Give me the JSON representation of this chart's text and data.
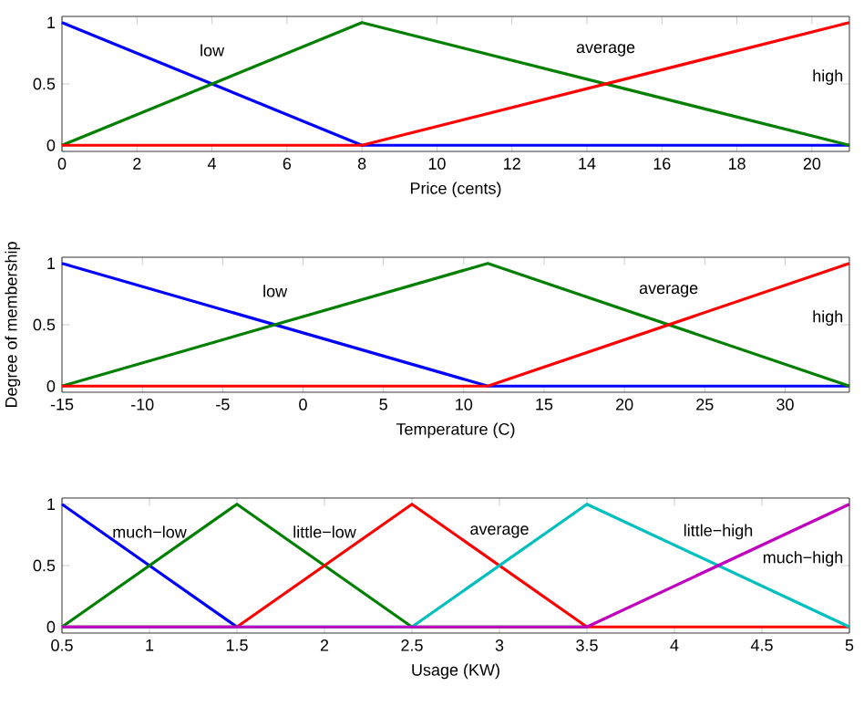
{
  "chart_data": [
    {
      "type": "line",
      "xlabel": "Price (cents)",
      "x": [
        0,
        8,
        21
      ],
      "xlim": [
        0,
        21
      ],
      "xticks": [
        0,
        2,
        4,
        6,
        8,
        10,
        12,
        14,
        16,
        18,
        20
      ],
      "ylim": [
        -0.05,
        1.05
      ],
      "yticks": [
        0,
        0.5,
        1
      ],
      "legend": false,
      "series": [
        {
          "name": "low",
          "color": "#0000ff",
          "values": [
            1,
            0,
            0
          ]
        },
        {
          "name": "average",
          "color": "#007f00",
          "values": [
            0,
            1,
            0
          ]
        },
        {
          "name": "high",
          "color": "#ff0000",
          "values": [
            0,
            0,
            1
          ]
        }
      ]
    },
    {
      "type": "line",
      "xlabel": "Temperature (C)",
      "ylabel": "Degree of membership",
      "x": [
        -15,
        11.5,
        34
      ],
      "xlim": [
        -15,
        34
      ],
      "xticks": [
        -15,
        -10,
        -5,
        0,
        5,
        10,
        15,
        20,
        25,
        30
      ],
      "ylim": [
        -0.05,
        1.05
      ],
      "yticks": [
        0,
        0.5,
        1
      ],
      "legend": false,
      "series": [
        {
          "name": "low",
          "color": "#0000ff",
          "values": [
            1,
            0,
            0
          ]
        },
        {
          "name": "average",
          "color": "#007f00",
          "values": [
            0,
            1,
            0
          ]
        },
        {
          "name": "high",
          "color": "#ff0000",
          "values": [
            0,
            0,
            1
          ]
        }
      ]
    },
    {
      "type": "line",
      "xlabel": "Usage (KW)",
      "x": [
        0.5,
        1.5,
        2.5,
        3.5,
        5
      ],
      "xlim": [
        0.5,
        5
      ],
      "xticks": [
        0.5,
        1,
        1.5,
        2,
        2.5,
        3,
        3.5,
        4,
        4.5,
        5
      ],
      "ylim": [
        -0.05,
        1.05
      ],
      "yticks": [
        0,
        0.5,
        1
      ],
      "legend": false,
      "series": [
        {
          "name": "much−low",
          "color": "#0000ff",
          "values": [
            1,
            0,
            null,
            null,
            null
          ]
        },
        {
          "name": "little−low",
          "color": "#007f00",
          "values": [
            0,
            1,
            0,
            0,
            null
          ]
        },
        {
          "name": "average",
          "color": "#ff0000",
          "values": [
            0,
            0,
            1,
            0,
            0
          ]
        },
        {
          "name": "little−high",
          "color": "#00bfbf",
          "values": [
            0,
            0,
            0,
            1,
            0
          ]
        },
        {
          "name": "much−high",
          "color": "#bf00bf",
          "values": [
            0,
            0,
            0,
            0,
            1
          ]
        }
      ]
    }
  ]
}
